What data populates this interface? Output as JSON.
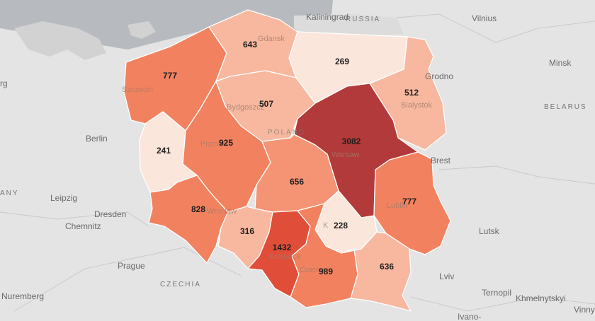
{
  "colors": {
    "background": "#e4e4e4",
    "sea": "#b7babe",
    "scale": [
      "#fbe6dc",
      "#f7b89f",
      "#f59475",
      "#f2825f",
      "#e04e3a",
      "#b33a3a"
    ]
  },
  "places": {
    "kaliningrad": "Kaliningrad",
    "russia": "RUSSIA",
    "vilnius": "Vilnius",
    "minsk": "Minsk",
    "belarus": "BELARUS",
    "grodno": "Grodno",
    "berg": "rg",
    "berlin": "Berlin",
    "germany": "ANY",
    "leipzig": "Leipzig",
    "dresden": "Dresden",
    "chemnitz": "Chemnitz",
    "prague": "Prague",
    "czechia": "CZECHIA",
    "nuremberg": "Nuremberg",
    "brest": "Brest",
    "lutsk": "Lutsk",
    "lviv": "Lviv",
    "ternopil": "Ternopil",
    "khmelnytskyi": "Khmelnytskyi",
    "vinny": "Vinny",
    "ivano": "Ivano-",
    "poland": "POLAND"
  },
  "under_labels": {
    "gdansk": "Gdansk",
    "szczecin": "Szczecin",
    "bydgoszcz": "Bydgoszcz",
    "bialystok": "Bialystok",
    "poznan": "Poznan",
    "warsaw": "Warsaw",
    "wroclaw": "Wroclaw",
    "lublin": "Lublin",
    "katowice": "Katowice",
    "krakow": "Cracow",
    "kielce": "K"
  },
  "regions": [
    {
      "id": "zachodniopomorskie",
      "value": "777",
      "level": 3
    },
    {
      "id": "pomorskie",
      "value": "643",
      "level": 1
    },
    {
      "id": "warminsko-mazurskie",
      "value": "269",
      "level": 0
    },
    {
      "id": "podlaskie",
      "value": "512",
      "level": 1
    },
    {
      "id": "kujawsko-pomorskie",
      "value": "507",
      "level": 1
    },
    {
      "id": "lubuskie",
      "value": "241",
      "level": 0
    },
    {
      "id": "wielkopolskie",
      "value": "925",
      "level": 3
    },
    {
      "id": "mazowieckie",
      "value": "3082",
      "level": 5
    },
    {
      "id": "lodzkie",
      "value": "656",
      "level": 2
    },
    {
      "id": "dolnoslaskie",
      "value": "828",
      "level": 3
    },
    {
      "id": "lubelskie",
      "value": "777",
      "level": 3
    },
    {
      "id": "opolskie",
      "value": "316",
      "level": 1
    },
    {
      "id": "swietokrzyskie",
      "value": "228",
      "level": 0
    },
    {
      "id": "slaskie",
      "value": "1432",
      "level": 4
    },
    {
      "id": "malopolskie",
      "value": "989",
      "level": 3
    },
    {
      "id": "podkarpackie",
      "value": "636",
      "level": 1
    }
  ]
}
